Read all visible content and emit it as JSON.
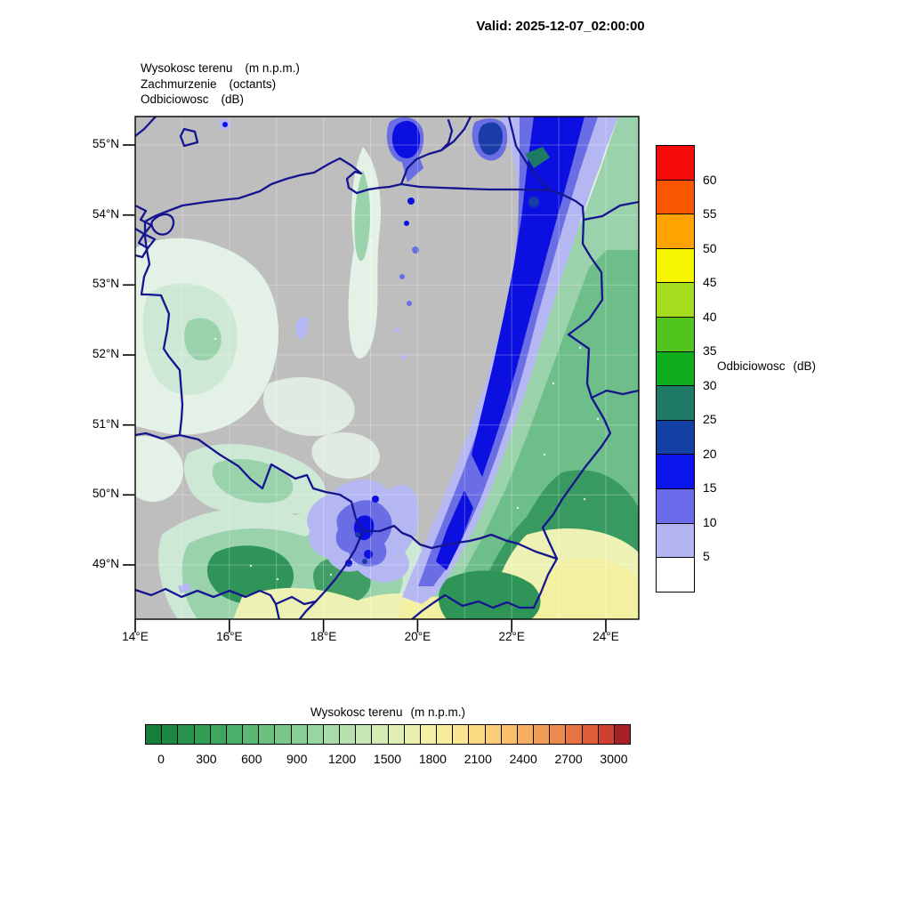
{
  "header": {
    "valid": "Valid: 2025-12-07_02:00:00"
  },
  "legend": {
    "lines": [
      {
        "name": "Wysokosc terenu",
        "unit": "(m n.p.m.)"
      },
      {
        "name": "Zachmurzenie",
        "unit": "(octants)"
      },
      {
        "name": "Odbiciowosc",
        "unit": "(dB)"
      }
    ]
  },
  "map": {
    "lat_ticks": [
      "55°N",
      "54°N",
      "53°N",
      "52°N",
      "51°N",
      "50°N",
      "49°N"
    ],
    "lon_ticks": [
      "14°E",
      "16°E",
      "18°E",
      "20°E",
      "22°E",
      "24°E"
    ],
    "colors": {
      "background": "#bebebe",
      "border": "#15158f",
      "terrain_pale": "#e3f1e6",
      "terrain_light": "#cde8d4",
      "terrain_mid": "#9ad2ac",
      "terrain_green": "#5fb77f",
      "terrain_dark": "#2f9458",
      "terrain_yellow_pale": "#edf2b4",
      "terrain_yellow": "#f4f0a2",
      "radar_5": "#b4b7f2",
      "radar_10": "#6a6de4",
      "radar_15": "#0b10e0",
      "radar_20": "#1a3ca8",
      "radar_25": "#1e7a64"
    }
  },
  "reflectivity_colorbar": {
    "title_name": "Odbiciowosc",
    "title_unit": "(dB)",
    "labels": [
      "60",
      "55",
      "50",
      "45",
      "40",
      "35",
      "30",
      "25",
      "20",
      "15",
      "10",
      "5"
    ],
    "colors": [
      "#f50a0a",
      "#f85600",
      "#ffa300",
      "#f8f500",
      "#a6dc1e",
      "#52c41e",
      "#0fae1e",
      "#1e7a64",
      "#1240a5",
      "#0a14eb",
      "#6b6beb",
      "#b3b6f2",
      "#ffffff"
    ]
  },
  "terrain_colorbar": {
    "title_name": "Wysokosc terenu",
    "title_unit": "(m n.p.m.)",
    "labels": [
      "0",
      "300",
      "600",
      "900",
      "1200",
      "1500",
      "1800",
      "2100",
      "2400",
      "2700",
      "3000"
    ],
    "colors": [
      "#157e3b",
      "#1e8843",
      "#28924c",
      "#339c55",
      "#3fa65f",
      "#4caf69",
      "#5ab874",
      "#69c07f",
      "#78c88a",
      "#88cf95",
      "#98d69f",
      "#a8dca8",
      "#b7e2af",
      "#c6e7b4",
      "#d4ebb6",
      "#e0eeb4",
      "#eaf1af",
      "#f2f1a7",
      "#f7ee9c",
      "#fae590",
      "#fbda84",
      "#fbcd78",
      "#f9bf6d",
      "#f6af62",
      "#f19d57",
      "#ec894d",
      "#e57343",
      "#dd5c39",
      "#ce4130",
      "#a72027"
    ]
  }
}
